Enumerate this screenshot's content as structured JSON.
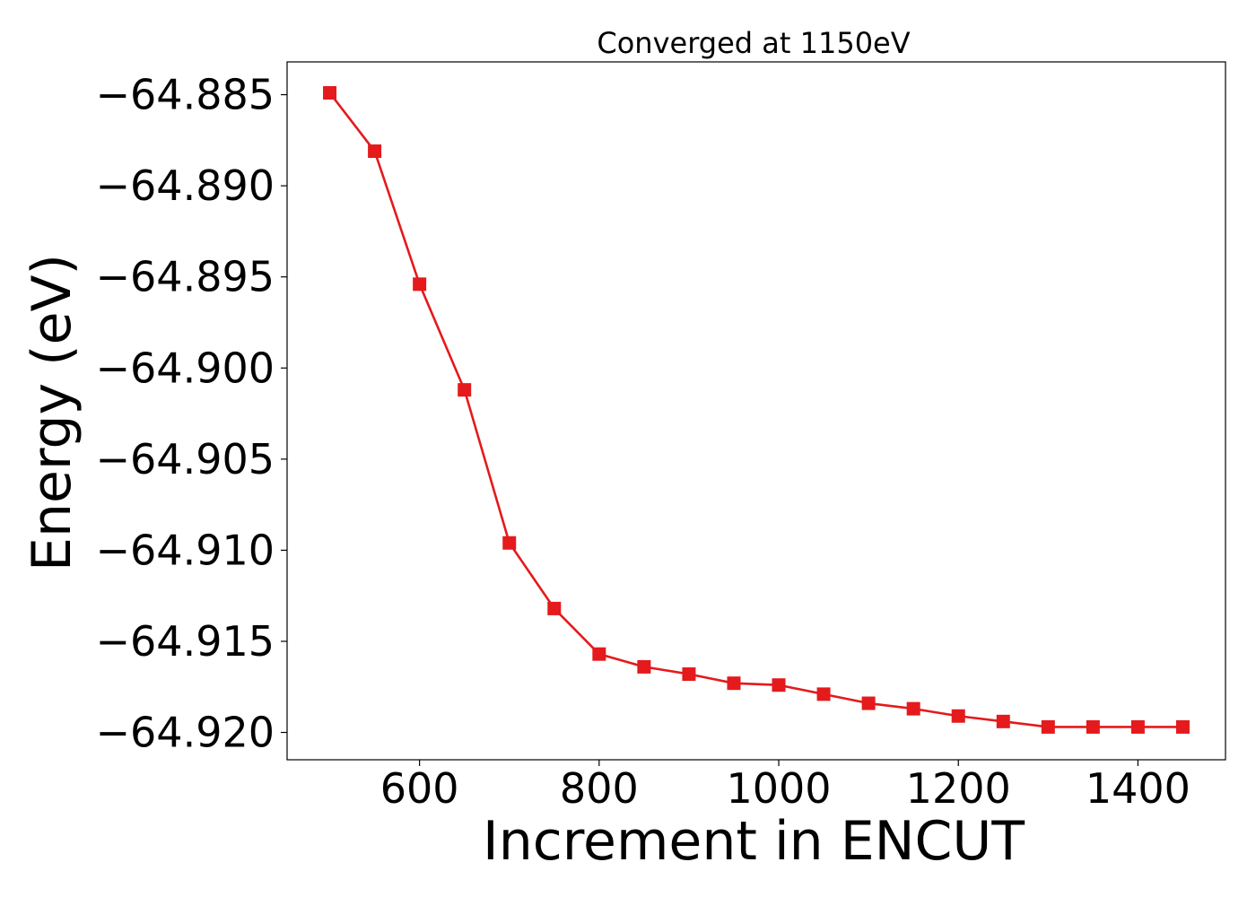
{
  "chart_data": {
    "type": "line",
    "title": "Converged at 1150eV",
    "xlabel": "Increment in ENCUT",
    "ylabel": "Energy (eV)",
    "xlim": [
      452.5,
      1497.5
    ],
    "ylim": [
      -64.9215,
      -64.8832
    ],
    "x_ticks": [
      600,
      800,
      1000,
      1200,
      1400
    ],
    "x_tick_labels": [
      "600",
      "800",
      "1000",
      "1200",
      "1400"
    ],
    "y_ticks": [
      -64.885,
      -64.89,
      -64.895,
      -64.9,
      -64.905,
      -64.91,
      -64.915,
      -64.92
    ],
    "y_tick_labels": [
      "−64.885",
      "−64.890",
      "−64.895",
      "−64.900",
      "−64.905",
      "−64.910",
      "−64.915",
      "−64.920"
    ],
    "grid": false,
    "series": [
      {
        "color": "#e41a1c",
        "marker": "square",
        "x": [
          500,
          550,
          600,
          650,
          700,
          750,
          800,
          850,
          900,
          950,
          1000,
          1050,
          1100,
          1150,
          1200,
          1250,
          1300,
          1350,
          1400,
          1450
        ],
        "y": [
          -64.8849,
          -64.8881,
          -64.8954,
          -64.9012,
          -64.9096,
          -64.9132,
          -64.9157,
          -64.9164,
          -64.9168,
          -64.9173,
          -64.9174,
          -64.9179,
          -64.9184,
          -64.9187,
          -64.9191,
          -64.9194,
          -64.9197,
          -64.9197,
          -64.9197,
          -64.9197
        ]
      }
    ]
  }
}
